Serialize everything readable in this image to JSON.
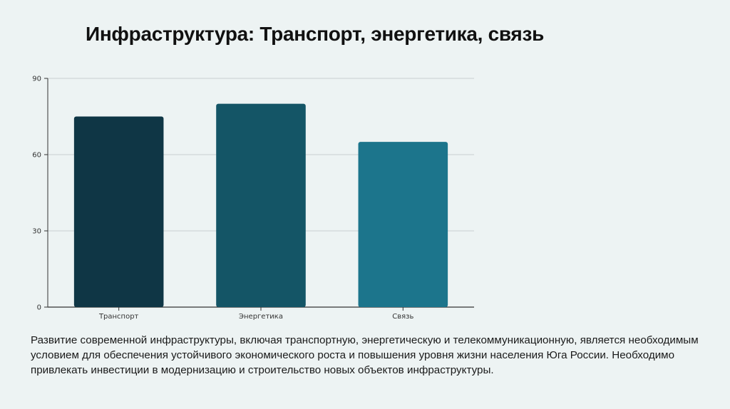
{
  "slide": {
    "title": "Инфраструктура: Транспорт, энергетика, связь",
    "body": "Развитие современной инфраструктуры, включая транспортную, энергетическую и телекоммуникационную, является необходимым условием для обеспечения устойчивого экономического роста и повышения уровня жизни населения Юга России. Необходимо привлекать инвестиции в модернизацию и строительство новых объектов инфраструктуры."
  },
  "chart_data": {
    "type": "bar",
    "categories": [
      "Транспорт",
      "Энергетика",
      "Связь"
    ],
    "values": [
      75,
      80,
      65
    ],
    "colors": [
      "#0f3645",
      "#145566",
      "#1c758c"
    ],
    "ylim": [
      0,
      90
    ],
    "yticks": [
      0,
      30,
      60,
      90
    ],
    "grid": true,
    "title": "",
    "xlabel": "",
    "ylabel": ""
  }
}
